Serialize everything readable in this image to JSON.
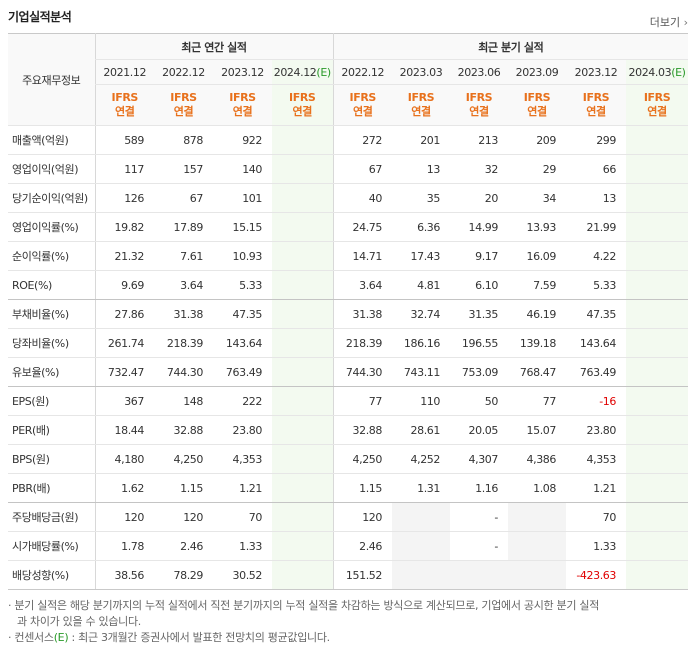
{
  "header": {
    "title": "기업실적분석",
    "more": "더보기"
  },
  "table": {
    "corner": "주요재무정보",
    "groups": [
      {
        "label": "최근 연간 실적",
        "span": 4
      },
      {
        "label": "최근 분기 실적",
        "span": 6
      }
    ],
    "periods": [
      {
        "label": "2021.12"
      },
      {
        "label": "2022.12"
      },
      {
        "label": "2023.12"
      },
      {
        "label": "2024.12",
        "estimate": "(E)"
      },
      {
        "label": "2022.12"
      },
      {
        "label": "2023.03"
      },
      {
        "label": "2023.06"
      },
      {
        "label": "2023.09"
      },
      {
        "label": "2023.12"
      },
      {
        "label": "2024.03",
        "estimate": "(E)"
      }
    ],
    "basis": [
      {
        "standard": "IFRS",
        "scope": "연결"
      },
      {
        "standard": "IFRS",
        "scope": "연결"
      },
      {
        "standard": "IFRS",
        "scope": "연결"
      },
      {
        "standard": "IFRS",
        "scope": "연결"
      },
      {
        "standard": "IFRS",
        "scope": "연결"
      },
      {
        "standard": "IFRS",
        "scope": "연결"
      },
      {
        "standard": "IFRS",
        "scope": "연결"
      },
      {
        "standard": "IFRS",
        "scope": "연결"
      },
      {
        "standard": "IFRS",
        "scope": "연결"
      },
      {
        "standard": "IFRS",
        "scope": "연결"
      }
    ],
    "rows": [
      {
        "label": "매출액(억원)",
        "cells": [
          "589",
          "878",
          "922",
          null,
          "272",
          "201",
          "213",
          "209",
          "299",
          null
        ]
      },
      {
        "label": "영업이익(억원)",
        "cells": [
          "117",
          "157",
          "140",
          null,
          "67",
          "13",
          "32",
          "29",
          "66",
          null
        ]
      },
      {
        "label": "당기순이익(억원)",
        "cells": [
          "126",
          "67",
          "101",
          null,
          "40",
          "35",
          "20",
          "34",
          "13",
          null
        ]
      },
      {
        "label": "영업이익률(%)",
        "cells": [
          "19.82",
          "17.89",
          "15.15",
          null,
          "24.75",
          "6.36",
          "14.99",
          "13.93",
          "21.99",
          null
        ]
      },
      {
        "label": "순이익률(%)",
        "cells": [
          "21.32",
          "7.61",
          "10.93",
          null,
          "14.71",
          "17.43",
          "9.17",
          "16.09",
          "4.22",
          null
        ]
      },
      {
        "label": "ROE(%)",
        "cells": [
          "9.69",
          "3.64",
          "5.33",
          null,
          "3.64",
          "4.81",
          "6.10",
          "7.59",
          "5.33",
          null
        ]
      },
      {
        "label": "부채비율(%)",
        "cells": [
          "27.86",
          "31.38",
          "47.35",
          null,
          "31.38",
          "32.74",
          "31.35",
          "46.19",
          "47.35",
          null
        ]
      },
      {
        "label": "당좌비율(%)",
        "cells": [
          "261.74",
          "218.39",
          "143.64",
          null,
          "218.39",
          "186.16",
          "196.55",
          "139.18",
          "143.64",
          null
        ]
      },
      {
        "label": "유보율(%)",
        "cells": [
          "732.47",
          "744.30",
          "763.49",
          null,
          "744.30",
          "743.11",
          "753.09",
          "768.47",
          "763.49",
          null
        ]
      },
      {
        "label": "EPS(원)",
        "cells": [
          "367",
          "148",
          "222",
          null,
          "77",
          "110",
          "50",
          "77",
          "-16",
          null
        ]
      },
      {
        "label": "PER(배)",
        "cells": [
          "18.44",
          "32.88",
          "23.80",
          null,
          "32.88",
          "28.61",
          "20.05",
          "15.07",
          "23.80",
          null
        ]
      },
      {
        "label": "BPS(원)",
        "cells": [
          "4,180",
          "4,250",
          "4,353",
          null,
          "4,250",
          "4,252",
          "4,307",
          "4,386",
          "4,353",
          null
        ]
      },
      {
        "label": "PBR(배)",
        "cells": [
          "1.62",
          "1.15",
          "1.21",
          null,
          "1.15",
          "1.31",
          "1.16",
          "1.08",
          "1.21",
          null
        ]
      },
      {
        "label": "주당배당금(원)",
        "cells": [
          "120",
          "120",
          "70",
          null,
          "120",
          null,
          "-",
          null,
          "70",
          null
        ]
      },
      {
        "label": "시가배당률(%)",
        "cells": [
          "1.78",
          "2.46",
          "1.33",
          null,
          "2.46",
          null,
          "-",
          null,
          "1.33",
          null
        ]
      },
      {
        "label": "배당성향(%)",
        "cells": [
          "38.56",
          "78.29",
          "30.52",
          null,
          "151.52",
          null,
          null,
          null,
          "-423.63",
          null
        ]
      }
    ]
  },
  "notes": {
    "quarterly": "분기 실적은 해당 분기까지의 누적 실적에서 직전 분기까지의 누적 실적을 차감하는 방식으로 계산되므로, 기업에서 공시한 분기 실적과 차이가 있을 수 있습니다.",
    "consensus": {
      "term": "컨센서스",
      "mark": "(E)",
      "text": ": 최근 3개월간 증권사에서 발표한 전망치의 평균값입니다."
    }
  }
}
